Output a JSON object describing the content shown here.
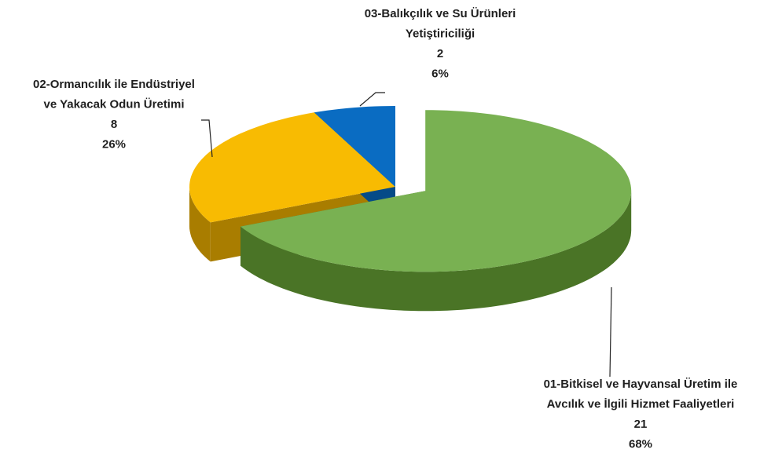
{
  "chart_data": {
    "type": "pie3d",
    "categories": [
      [
        "01-Bitkisel ve Hayvansal Üretim ile",
        "Avcılık ve İlgili Hizmet Faaliyetleri"
      ],
      [
        "02-Ormancılık ile Endüstriyel",
        "ve Yakacak Odun Üretimi"
      ],
      [
        "03-Balıkçılık ve Su Ürünleri",
        "Yetiştiriciliği"
      ]
    ],
    "values": [
      21,
      8,
      2
    ],
    "percent_labels": [
      "68%",
      "26%",
      "6%"
    ],
    "colors": [
      "#79b152",
      "#f8bb02",
      "#0a6cc2"
    ],
    "side_colors": [
      "#4a7426",
      "#a97d00",
      "#054b88"
    ],
    "exploded": [
      true,
      false,
      false
    ]
  }
}
